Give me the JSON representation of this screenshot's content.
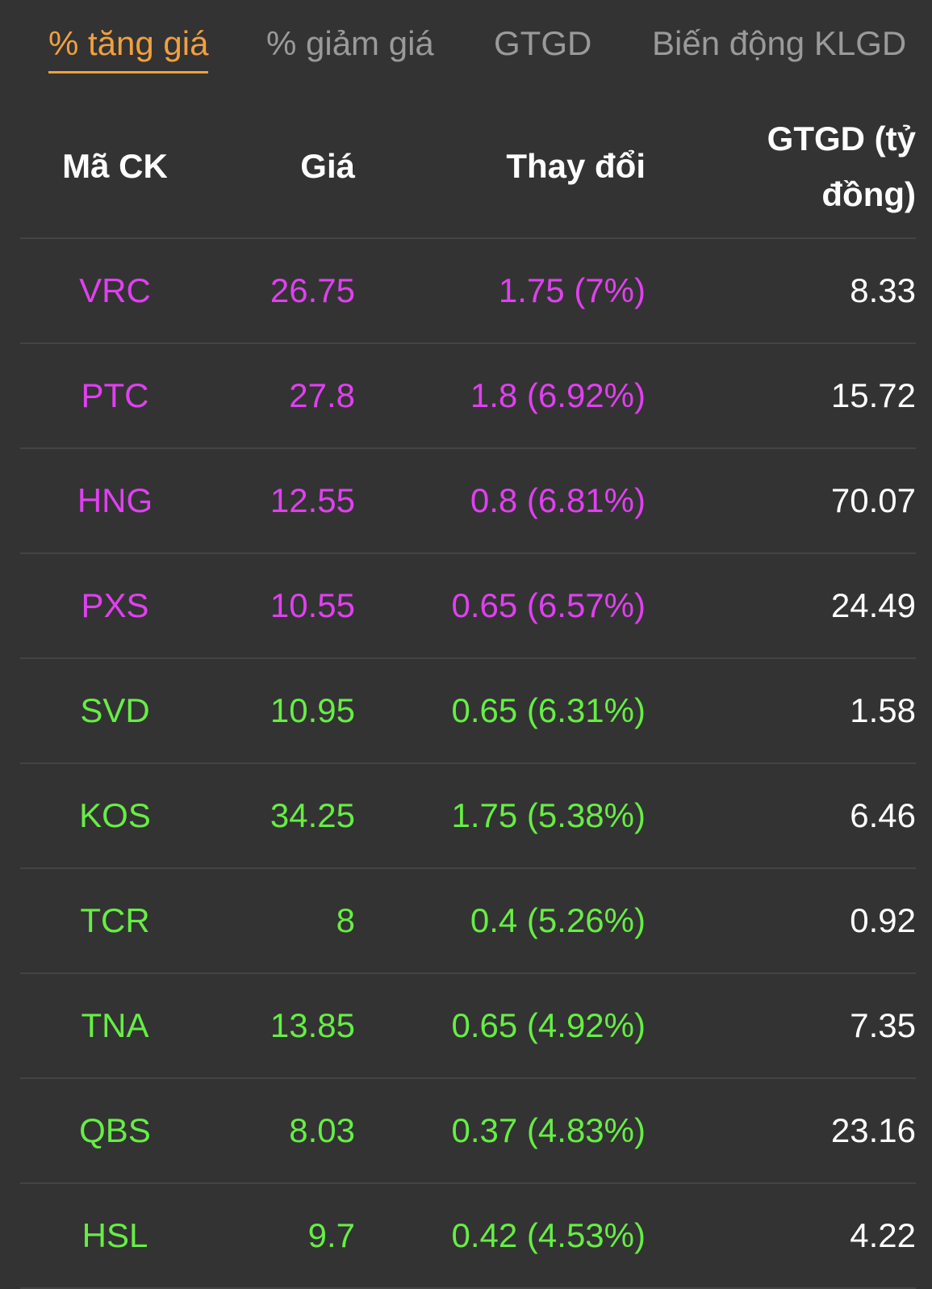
{
  "colors": {
    "background": "#333333",
    "active_tab": "#f0a040",
    "inactive_tab": "#9a9a9a",
    "ceiling": "#e040f0",
    "up": "#66ee44",
    "divider": "#444444"
  },
  "tabs": [
    {
      "label": "% tăng giá",
      "active": true
    },
    {
      "label": "% giảm giá",
      "active": false
    },
    {
      "label": "GTGD",
      "active": false
    },
    {
      "label": "Biến động KLGD",
      "active": false
    }
  ],
  "table": {
    "headers": {
      "symbol": "Mã CK",
      "price": "Giá",
      "change": "Thay đổi",
      "value_line1": "GTGD (tỷ",
      "value_line2": "đồng)"
    },
    "rows": [
      {
        "symbol": "VRC",
        "price": "26.75",
        "change": "1.75 (7%)",
        "value": "8.33",
        "status": "ceiling"
      },
      {
        "symbol": "PTC",
        "price": "27.8",
        "change": "1.8 (6.92%)",
        "value": "15.72",
        "status": "ceiling"
      },
      {
        "symbol": "HNG",
        "price": "12.55",
        "change": "0.8 (6.81%)",
        "value": "70.07",
        "status": "ceiling"
      },
      {
        "symbol": "PXS",
        "price": "10.55",
        "change": "0.65 (6.57%)",
        "value": "24.49",
        "status": "ceiling"
      },
      {
        "symbol": "SVD",
        "price": "10.95",
        "change": "0.65 (6.31%)",
        "value": "1.58",
        "status": "up"
      },
      {
        "symbol": "KOS",
        "price": "34.25",
        "change": "1.75 (5.38%)",
        "value": "6.46",
        "status": "up"
      },
      {
        "symbol": "TCR",
        "price": "8",
        "change": "0.4 (5.26%)",
        "value": "0.92",
        "status": "up"
      },
      {
        "symbol": "TNA",
        "price": "13.85",
        "change": "0.65 (4.92%)",
        "value": "7.35",
        "status": "up"
      },
      {
        "symbol": "QBS",
        "price": "8.03",
        "change": "0.37 (4.83%)",
        "value": "23.16",
        "status": "up"
      },
      {
        "symbol": "HSL",
        "price": "9.7",
        "change": "0.42 (4.53%)",
        "value": "4.22",
        "status": "up"
      }
    ]
  }
}
